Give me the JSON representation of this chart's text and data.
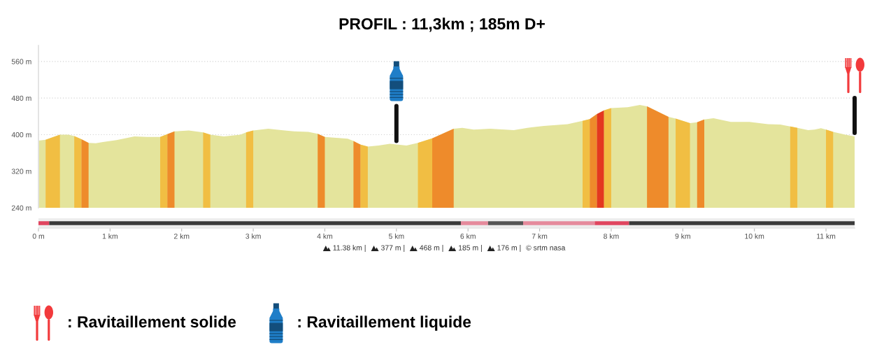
{
  "chart_data": [
    {
      "type": "area",
      "title": "PROFIL : 11,3km ; 185m D+",
      "xlim": [
        0,
        11.4
      ],
      "ylim": [
        240,
        595
      ],
      "yticks": [
        {
          "value": 240,
          "label": "240 m"
        },
        {
          "value": 320,
          "label": "320 m"
        },
        {
          "value": 400,
          "label": "400 m"
        },
        {
          "value": 480,
          "label": "480 m"
        },
        {
          "value": 560,
          "label": "560 m"
        }
      ],
      "grid": "y",
      "tick_labels": "y",
      "series": [
        {
          "color": "#e4e49c",
          "x": [
            0,
            0.1,
            0.3,
            0.42,
            0.5,
            0.6,
            0.7,
            0.8,
            0.9,
            1.09,
            1.34,
            1.52,
            1.7,
            1.8,
            1.9,
            2.1,
            2.3,
            2.4,
            2.59,
            2.82,
            2.9,
            3.0,
            3.21,
            3.44,
            3.57,
            3.77,
            3.9,
            4.0,
            4.32,
            4.4,
            4.5,
            4.6,
            4.75,
            4.91,
            5.14,
            5.3,
            5.5,
            5.8,
            5.92,
            6.08,
            6.31,
            6.64,
            6.83,
            7.06,
            7.39,
            7.6,
            7.7,
            7.8,
            7.9,
            8.0,
            8.23,
            8.4,
            8.5,
            8.8,
            8.9,
            9.1,
            9.2,
            9.3,
            9.43,
            9.67,
            9.93,
            10.19,
            10.36,
            10.5,
            10.6,
            10.75,
            10.84,
            10.93,
            11.0,
            11.1,
            11.27,
            11.4
          ],
          "values": [
            387,
            389,
            400,
            400,
            397,
            390,
            382,
            381,
            384,
            388,
            396,
            395,
            395,
            401,
            407,
            409,
            405,
            400,
            396,
            400,
            405,
            409,
            413,
            409,
            407,
            406,
            402,
            395,
            391,
            386,
            378,
            374,
            376,
            380,
            376,
            382,
            392,
            413,
            415,
            411,
            413,
            410,
            415,
            419,
            423,
            430,
            434,
            445,
            453,
            458,
            460,
            465,
            462,
            439,
            435,
            425,
            427,
            433,
            436,
            428,
            428,
            423,
            422,
            418,
            415,
            410,
            411,
            414,
            411,
            406,
            400,
            396
          ]
        },
        {
          "color": "#f1be43",
          "x": [
            0.1,
            0.3
          ],
          "values": [
            389,
            400
          ]
        },
        {
          "color": "#f1be43",
          "x": [
            0.5,
            0.6
          ],
          "values": [
            397,
            390
          ]
        },
        {
          "color": "#ee8b2b",
          "x": [
            0.6,
            0.7
          ],
          "values": [
            390,
            382
          ]
        },
        {
          "color": "#f1be43",
          "x": [
            1.7,
            1.8
          ],
          "values": [
            395,
            401
          ]
        },
        {
          "color": "#ee8b2b",
          "x": [
            1.8,
            1.9
          ],
          "values": [
            401,
            407
          ]
        },
        {
          "color": "#f1be43",
          "x": [
            2.3,
            2.4
          ],
          "values": [
            405,
            400
          ]
        },
        {
          "color": "#f1be43",
          "x": [
            2.9,
            3.0
          ],
          "values": [
            405,
            409
          ]
        },
        {
          "color": "#ee8b2b",
          "x": [
            3.9,
            4.0
          ],
          "values": [
            402,
            395
          ]
        },
        {
          "color": "#ee8b2b",
          "x": [
            4.4,
            4.5
          ],
          "values": [
            386,
            378
          ]
        },
        {
          "color": "#f1be43",
          "x": [
            4.5,
            4.6
          ],
          "values": [
            378,
            374
          ]
        },
        {
          "color": "#f1be43",
          "x": [
            5.3,
            5.5
          ],
          "values": [
            382,
            392
          ]
        },
        {
          "color": "#ee8b2b",
          "x": [
            5.5,
            5.8
          ],
          "values": [
            392,
            413
          ]
        },
        {
          "color": "#f1be43",
          "x": [
            7.6,
            7.7
          ],
          "values": [
            430,
            434
          ]
        },
        {
          "color": "#ee8b2b",
          "x": [
            7.7,
            7.8
          ],
          "values": [
            434,
            445
          ]
        },
        {
          "color": "#e4381f",
          "x": [
            7.8,
            7.9
          ],
          "values": [
            445,
            453
          ]
        },
        {
          "color": "#f1be43",
          "x": [
            7.9,
            8.0
          ],
          "values": [
            453,
            458
          ]
        },
        {
          "color": "#ee8b2b",
          "x": [
            8.5,
            8.8
          ],
          "values": [
            462,
            439
          ]
        },
        {
          "color": "#f1be43",
          "x": [
            8.9,
            9.1
          ],
          "values": [
            435,
            425
          ]
        },
        {
          "color": "#ee8b2b",
          "x": [
            9.2,
            9.3
          ],
          "values": [
            427,
            433
          ]
        },
        {
          "color": "#f1be43",
          "x": [
            10.5,
            10.6
          ],
          "values": [
            418,
            415
          ]
        },
        {
          "color": "#f1be43",
          "x": [
            11.0,
            11.1
          ],
          "values": [
            411,
            406
          ]
        }
      ],
      "ref_lines": [
        {
          "axis": "x",
          "value": 11.4,
          "color": "#111111"
        },
        {
          "axis": "x",
          "value": 5.0,
          "color": "#111111"
        }
      ],
      "annotations": [
        "11.38 km |",
        "377 m |",
        "468 m |",
        "185 m |",
        "176 m |",
        "© srtm nasa",
        ": Ravitaillement solide",
        ": Ravitaillement liquide"
      ]
    },
    {
      "type": "bar",
      "orientation": "horizontal",
      "stacked": true,
      "categories": [
        null
      ],
      "xlim": [
        0,
        11.4
      ],
      "xticks": [
        {
          "value": 0,
          "label": "0 m"
        },
        {
          "value": 1,
          "label": "1 km"
        },
        {
          "value": 2,
          "label": "2 km"
        },
        {
          "value": 3,
          "label": "3 km"
        },
        {
          "value": 4,
          "label": "4 km"
        },
        {
          "value": 5,
          "label": "5 km"
        },
        {
          "value": 6,
          "label": "6 km"
        },
        {
          "value": 7,
          "label": "7 km"
        },
        {
          "value": 8,
          "label": "8 km"
        },
        {
          "value": 9,
          "label": "9 km"
        },
        {
          "value": 10,
          "label": "10 km"
        },
        {
          "value": 11,
          "label": "11 km"
        }
      ],
      "tick_labels": "x",
      "series": [
        {
          "color": "#e0455f",
          "values": [
            0.15
          ]
        },
        {
          "color": "#3a3a3a",
          "values": [
            5.75
          ]
        },
        {
          "color": "#e58a9c",
          "values": [
            0.38
          ]
        },
        {
          "color": "#555555",
          "values": [
            0.49
          ]
        },
        {
          "color": "#e58a9c",
          "values": [
            1.0
          ]
        },
        {
          "color": "#e0455f",
          "values": [
            0.48
          ]
        },
        {
          "color": "#3a3a3a",
          "values": [
            3.15
          ]
        }
      ]
    }
  ]
}
